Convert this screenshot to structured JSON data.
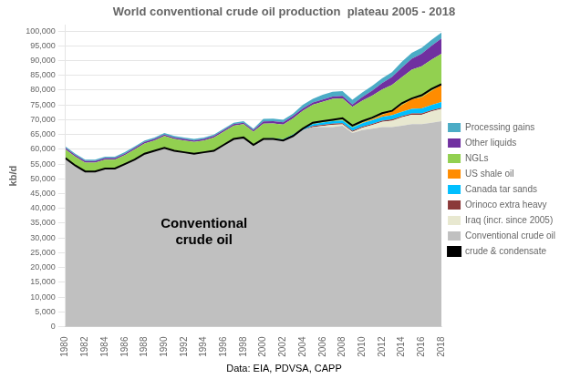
{
  "chart_data": {
    "type": "area",
    "title": "World conventional crude oil production  plateau 2005 - 2018",
    "ylabel": "kb/d",
    "source": "Data: EIA, PDVSA, CAPP",
    "stacked": true,
    "grid": "y",
    "legend": "right",
    "x": [
      1980,
      1981,
      1982,
      1983,
      1984,
      1985,
      1986,
      1987,
      1988,
      1989,
      1990,
      1991,
      1992,
      1993,
      1994,
      1995,
      1996,
      1997,
      1998,
      1999,
      2000,
      2001,
      2002,
      2003,
      2004,
      2005,
      2006,
      2007,
      2008,
      2009,
      2010,
      2011,
      2012,
      2013,
      2014,
      2015,
      2016,
      2017,
      2018
    ],
    "xlim": [
      1980,
      2018
    ],
    "xticks": [
      1980,
      1982,
      1984,
      1986,
      1988,
      1990,
      1992,
      1994,
      1996,
      1998,
      2000,
      2002,
      2004,
      2006,
      2008,
      2010,
      2012,
      2014,
      2016,
      2018
    ],
    "ylim": [
      0,
      102000
    ],
    "yticks": [
      0,
      {
        "value": 5000,
        "label": "5,000"
      },
      {
        "value": 10000,
        "label": "10,000"
      },
      {
        "value": 15000,
        "label": "15,000"
      },
      {
        "value": 20000,
        "label": "20,000"
      },
      {
        "value": 25000,
        "label": "25,000"
      },
      {
        "value": 30000,
        "label": "30,000"
      },
      {
        "value": 35000,
        "label": "35,000"
      },
      {
        "value": 40000,
        "label": "40,000"
      },
      {
        "value": 45000,
        "label": "45,000"
      },
      {
        "value": 50000,
        "label": "50,000"
      },
      {
        "value": 55000,
        "label": "55,000"
      },
      {
        "value": 60000,
        "label": "60,000"
      },
      {
        "value": 65000,
        "label": "65,000"
      },
      {
        "value": 70000,
        "label": "70,000"
      },
      {
        "value": 75000,
        "label": "75,000"
      },
      {
        "value": 80000,
        "label": "80,000"
      },
      {
        "value": 85000,
        "label": "85,000"
      },
      {
        "value": 90000,
        "label": "90,000"
      },
      {
        "value": 95000,
        "label": "95,000"
      },
      {
        "value": 100000,
        "label": "100,000"
      }
    ],
    "annotations": [
      {
        "text": "Conventional\ncrude oil",
        "x": 1994,
        "y": 32000
      }
    ],
    "series": [
      {
        "name": "Conventional crude oil",
        "type": "area",
        "color": "#c0c0c0",
        "values": [
          57000,
          54500,
          52500,
          52500,
          53500,
          53500,
          55000,
          56500,
          58500,
          59500,
          60500,
          59500,
          59000,
          58500,
          59000,
          59500,
          61500,
          63500,
          64000,
          61500,
          63500,
          63500,
          63000,
          64500,
          66500,
          67500,
          67500,
          67500,
          68000,
          65500,
          66500,
          67000,
          67500,
          67500,
          68000,
          68500,
          68500,
          69000,
          69500
        ]
      },
      {
        "name": "Iraq (incr. since 2005)",
        "type": "area",
        "color": "#e8e8d0",
        "values": [
          0,
          0,
          0,
          0,
          0,
          0,
          0,
          0,
          0,
          0,
          0,
          0,
          0,
          0,
          0,
          0,
          0,
          0,
          0,
          0,
          0,
          0,
          0,
          0,
          0,
          0,
          400,
          800,
          400,
          400,
          800,
          1200,
          1800,
          2200,
          2800,
          3200,
          3200,
          3800,
          4200
        ]
      },
      {
        "name": "Orinoco extra heavy",
        "type": "area",
        "color": "#8B3A3A",
        "values": [
          0,
          0,
          0,
          0,
          0,
          0,
          0,
          0,
          0,
          0,
          0,
          0,
          0,
          0,
          0,
          0,
          0,
          0,
          0,
          0,
          0,
          0,
          0,
          0,
          0,
          400,
          400,
          400,
          400,
          400,
          400,
          400,
          400,
          400,
          400,
          400,
          400,
          400,
          400
        ]
      },
      {
        "name": "Canada tar sands",
        "type": "area",
        "color": "#00BFFF",
        "values": [
          0,
          0,
          0,
          0,
          0,
          0,
          0,
          0,
          0,
          0,
          0,
          0,
          0,
          0,
          0,
          0,
          0,
          0,
          0,
          0,
          150,
          250,
          350,
          450,
          550,
          650,
          750,
          850,
          950,
          1050,
          1100,
          1200,
          1300,
          1400,
          1500,
          1600,
          1700,
          1800,
          1900
        ]
      },
      {
        "name": "US shale oil",
        "type": "area",
        "color": "#FF8C00",
        "values": [
          0,
          0,
          0,
          0,
          0,
          0,
          0,
          0,
          0,
          0,
          0,
          0,
          0,
          0,
          0,
          0,
          0,
          0,
          0,
          0,
          0,
          0,
          0,
          0,
          0,
          0,
          0,
          0,
          0,
          0,
          150,
          350,
          700,
          1300,
          2200,
          3200,
          3800,
          4800,
          5800
        ]
      },
      {
        "name": "NGLs",
        "type": "area",
        "color": "#92D050",
        "values": [
          3000,
          3000,
          3000,
          3000,
          3000,
          3000,
          3000,
          3500,
          3500,
          3500,
          4000,
          4000,
          4000,
          4000,
          4000,
          4500,
          4500,
          4500,
          4500,
          4500,
          5000,
          5000,
          5000,
          5500,
          6000,
          6500,
          7000,
          7500,
          7500,
          7000,
          7500,
          8000,
          8500,
          9000,
          9500,
          10000,
          10500,
          10500,
          10500
        ]
      },
      {
        "name": "Other liquids",
        "type": "area",
        "color": "#7030A0",
        "values": [
          500,
          500,
          500,
          500,
          500,
          500,
          500,
          500,
          500,
          500,
          500,
          500,
          500,
          500,
          500,
          500,
          500,
          500,
          500,
          500,
          800,
          800,
          800,
          800,
          800,
          800,
          800,
          800,
          800,
          800,
          1200,
          1700,
          2200,
          2700,
          3200,
          3700,
          4200,
          4700,
          5200
        ]
      },
      {
        "name": "Processing gains",
        "type": "area",
        "color": "#4BACC6",
        "values": [
          500,
          500,
          500,
          500,
          500,
          500,
          500,
          500,
          500,
          500,
          500,
          500,
          500,
          500,
          500,
          500,
          500,
          500,
          500,
          500,
          800,
          800,
          800,
          800,
          1200,
          1200,
          1600,
          1600,
          1600,
          1600,
          1600,
          1600,
          1600,
          1600,
          2000,
          2000,
          2000,
          2000,
          2000
        ]
      },
      {
        "name": "crude & condensate",
        "type": "line",
        "color": "#000000",
        "values": [
          57000,
          54500,
          52500,
          52500,
          53500,
          53500,
          55000,
          56500,
          58500,
          59500,
          60500,
          59500,
          59000,
          58500,
          59000,
          59500,
          61500,
          63500,
          64000,
          61500,
          63500,
          63500,
          63000,
          64500,
          67000,
          69000,
          69500,
          70000,
          70500,
          68000,
          69500,
          70700,
          72200,
          73000,
          75600,
          77200,
          78300,
          80400,
          82000
        ]
      }
    ]
  }
}
